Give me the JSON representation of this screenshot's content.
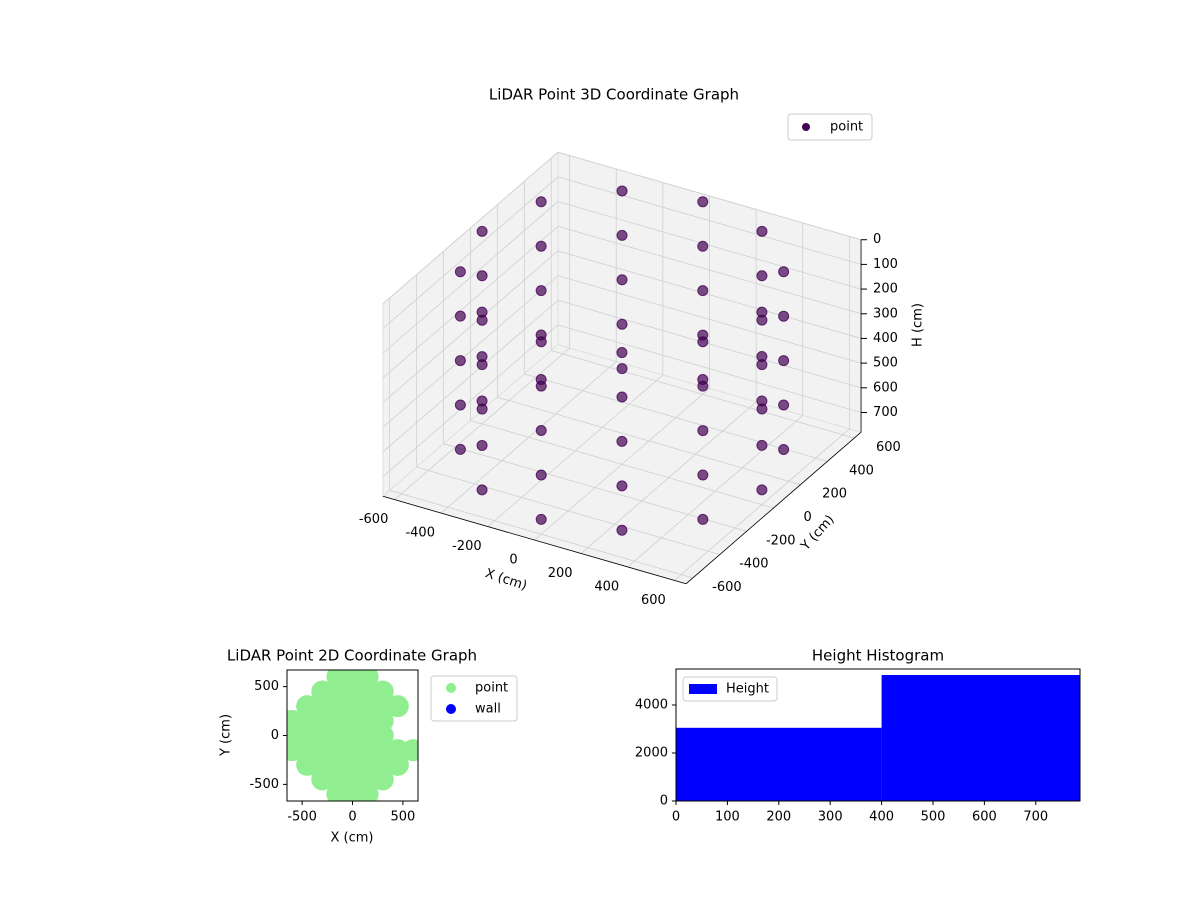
{
  "chart_data": [
    {
      "type": "scatter3d",
      "title": "LiDAR Point 3D Coordinate Graph",
      "xlabel": "X (cm)",
      "ylabel": "Y (cm)",
      "zlabel": "H (cm)",
      "xlim": [
        -650,
        650
      ],
      "ylim": [
        -650,
        650
      ],
      "zlim": [
        780,
        0
      ],
      "xticks": [
        -600,
        -400,
        -200,
        0,
        200,
        400,
        600
      ],
      "yticks": [
        -600,
        -400,
        -200,
        0,
        200,
        400,
        600
      ],
      "zticks": [
        0,
        100,
        200,
        300,
        400,
        500,
        600,
        700
      ],
      "grid": true,
      "legend": "upper right",
      "series": [
        {
          "name": "point",
          "color": "#440154",
          "x": [
            600,
            520,
            300,
            0,
            -300,
            -520,
            -600,
            -520,
            -300,
            0,
            300,
            520,
            600,
            520,
            300,
            0,
            -300,
            -520,
            -600,
            -520,
            -300,
            0,
            300,
            520,
            600,
            520,
            300,
            0,
            -300,
            -520,
            -600,
            -520,
            -300,
            0,
            300,
            520,
            600,
            520,
            300,
            0,
            -300,
            -520,
            -600,
            -520,
            -300,
            0,
            300,
            520,
            600,
            520,
            300,
            0,
            -300,
            -520,
            -600,
            -520,
            -300,
            0,
            300,
            520
          ],
          "y": [
            0,
            300,
            520,
            600,
            520,
            300,
            0,
            -300,
            -520,
            -600,
            -520,
            -300,
            0,
            300,
            520,
            600,
            520,
            300,
            0,
            -300,
            -520,
            -600,
            -520,
            -300,
            0,
            300,
            520,
            600,
            520,
            300,
            0,
            -300,
            -520,
            -600,
            -520,
            -300,
            0,
            300,
            520,
            600,
            520,
            300,
            0,
            -300,
            -520,
            -600,
            -520,
            -300,
            0,
            300,
            520,
            600,
            520,
            300,
            0,
            -300,
            -520,
            -600,
            -520,
            -300
          ],
          "z": [
            0,
            0,
            0,
            0,
            0,
            0,
            0,
            0,
            0,
            0,
            0,
            0,
            180,
            180,
            180,
            180,
            180,
            180,
            180,
            180,
            180,
            180,
            180,
            180,
            360,
            360,
            360,
            360,
            360,
            360,
            360,
            360,
            360,
            360,
            360,
            360,
            540,
            540,
            540,
            540,
            540,
            540,
            540,
            540,
            540,
            540,
            540,
            540,
            720,
            720,
            720,
            720,
            720,
            720,
            720,
            720,
            720,
            720,
            720,
            720
          ]
        }
      ]
    },
    {
      "type": "scatter",
      "title": "LiDAR Point 2D Coordinate Graph",
      "xlabel": "X (cm)",
      "ylabel": "Y (cm)",
      "xlim": [
        -650,
        650
      ],
      "ylim": [
        -670,
        670
      ],
      "xticks": [
        -500,
        0,
        500
      ],
      "yticks": [
        -500,
        0,
        500
      ],
      "legend": "outside right",
      "series": [
        {
          "name": "point",
          "color": "#90ee90",
          "x": [
            -600,
            -600,
            -600,
            -450,
            -450,
            -450,
            -450,
            -450,
            -300,
            -300,
            -300,
            -300,
            -300,
            -300,
            -300,
            -150,
            -150,
            -150,
            -150,
            -150,
            -150,
            -150,
            -150,
            -150,
            0,
            0,
            0,
            0,
            0,
            0,
            0,
            0,
            0,
            150,
            150,
            150,
            150,
            150,
            150,
            150,
            150,
            150,
            300,
            300,
            300,
            300,
            300,
            300,
            300,
            450,
            450,
            450,
            600
          ],
          "y": [
            -150,
            0,
            150,
            -300,
            -150,
            0,
            150,
            300,
            -450,
            -300,
            -150,
            0,
            150,
            300,
            450,
            -600,
            -450,
            -300,
            -150,
            0,
            150,
            300,
            450,
            600,
            -600,
            -450,
            -300,
            -150,
            0,
            150,
            300,
            450,
            600,
            -600,
            -450,
            -300,
            -150,
            0,
            150,
            300,
            450,
            600,
            -450,
            -300,
            -150,
            0,
            150,
            300,
            450,
            -300,
            -150,
            300,
            -150
          ]
        },
        {
          "name": "wall",
          "color": "#0000ff",
          "x": [],
          "y": []
        }
      ]
    },
    {
      "type": "histogram",
      "title": "Height Histogram",
      "bins": [
        0,
        400,
        786
      ],
      "xlim": [
        0,
        786
      ],
      "ylim": [
        0,
        5500
      ],
      "xticks": [
        0,
        100,
        200,
        300,
        400,
        500,
        600,
        700
      ],
      "yticks": [
        0,
        2000,
        4000
      ],
      "legend": "upper left",
      "series": [
        {
          "name": "Height",
          "color": "#0000ff",
          "values": [
            3050,
            5250
          ]
        }
      ]
    }
  ]
}
